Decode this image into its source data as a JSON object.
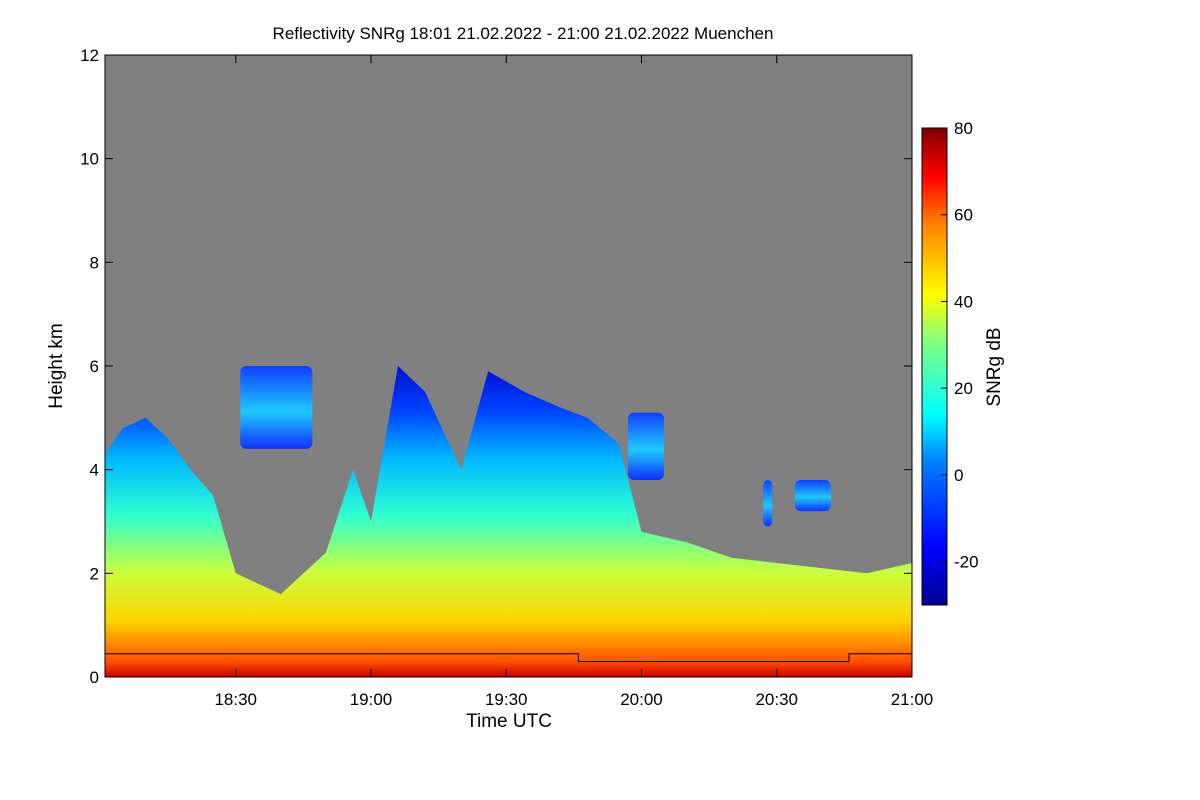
{
  "chart_data": {
    "type": "heatmap",
    "title": "Reflectivity SNRg   18:01 21.02.2022 - 21:00 21.02.2022 Muenchen",
    "xlabel": "Time UTC",
    "ylabel": "Height km",
    "xlim": [
      "18:01",
      "21:00"
    ],
    "ylim": [
      0,
      12
    ],
    "x_ticks": [
      "18:30",
      "19:00",
      "19:30",
      "20:00",
      "20:30",
      "21:00"
    ],
    "y_ticks": [
      "0",
      "2",
      "4",
      "6",
      "8",
      "10",
      "12"
    ],
    "background_color": "#808080",
    "colorbar": {
      "label": "SNRg dB",
      "range": [
        -30,
        80
      ],
      "ticks": [
        "-20",
        "0",
        "20",
        "40",
        "60",
        "80"
      ],
      "colormap": "jet"
    },
    "cloud_top_profile_km": [
      {
        "time": "18:01",
        "top": 4.3
      },
      {
        "time": "18:05",
        "top": 4.8
      },
      {
        "time": "18:10",
        "top": 5.0
      },
      {
        "time": "18:15",
        "top": 4.6
      },
      {
        "time": "18:20",
        "top": 4.0
      },
      {
        "time": "18:25",
        "top": 3.5
      },
      {
        "time": "18:30",
        "top": 2.0
      },
      {
        "time": "18:40",
        "top": 1.6
      },
      {
        "time": "18:50",
        "top": 2.4
      },
      {
        "time": "18:56",
        "top": 4.0
      },
      {
        "time": "19:00",
        "top": 3.0
      },
      {
        "time": "19:06",
        "top": 6.0
      },
      {
        "time": "19:12",
        "top": 5.5
      },
      {
        "time": "19:20",
        "top": 4.0
      },
      {
        "time": "19:26",
        "top": 5.9
      },
      {
        "time": "19:34",
        "top": 5.5
      },
      {
        "time": "19:42",
        "top": 5.2
      },
      {
        "time": "19:48",
        "top": 5.0
      },
      {
        "time": "19:55",
        "top": 4.5
      },
      {
        "time": "20:00",
        "top": 2.8
      },
      {
        "time": "20:10",
        "top": 2.6
      },
      {
        "time": "20:20",
        "top": 2.3
      },
      {
        "time": "20:30",
        "top": 2.2
      },
      {
        "time": "20:40",
        "top": 2.1
      },
      {
        "time": "20:50",
        "top": 2.0
      },
      {
        "time": "21:00",
        "top": 2.2
      }
    ],
    "upper_cloud_layers_km": [
      {
        "start": "18:31",
        "end": "18:47",
        "base": 4.4,
        "top": 6.0
      },
      {
        "start": "19:57",
        "end": "20:05",
        "base": 3.8,
        "top": 5.1
      },
      {
        "start": "20:27",
        "end": "20:29",
        "base": 2.9,
        "top": 3.8
      },
      {
        "start": "20:34",
        "end": "20:42",
        "base": 3.2,
        "top": 3.8
      }
    ],
    "reference_line_km": [
      {
        "start": "18:01",
        "end": "19:46",
        "height": 0.45
      },
      {
        "start": "19:46",
        "end": "20:46",
        "height": 0.3
      },
      {
        "start": "20:46",
        "end": "21:00",
        "height": 0.45
      }
    ]
  }
}
